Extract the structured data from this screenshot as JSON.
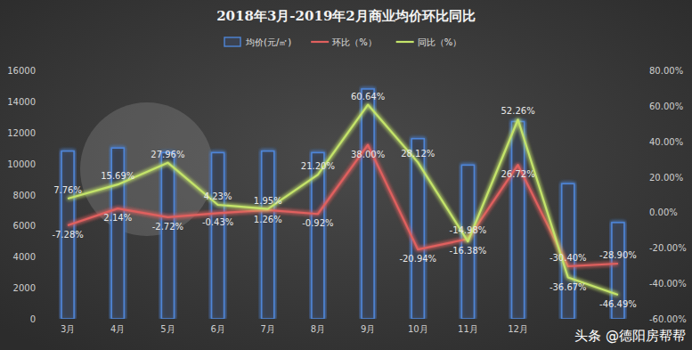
{
  "chart_data": {
    "type": "bar",
    "title": "2018年3月-2019年2月商业均价环比同比",
    "categories": [
      "3月",
      "4月",
      "5月",
      "6月",
      "7月",
      "8月",
      "9月",
      "10月",
      "11月",
      "12月",
      null,
      null
    ],
    "series": [
      {
        "name": "均价(元/㎡)",
        "type": "bar",
        "color": "#4f86d8",
        "data_labels": false,
        "values": [
          10800,
          11000,
          10700,
          10700,
          10800,
          10700,
          14800,
          11600,
          9900,
          12700,
          8700,
          6200
        ]
      },
      {
        "name": "环比（%）",
        "type": "line",
        "axis": "y2",
        "color": "#e0605e",
        "data_labels": true,
        "values": [
          -7.28,
          2.14,
          -2.72,
          -0.43,
          1.26,
          -0.92,
          38.0,
          -20.94,
          -14.98,
          26.72,
          -30.4,
          -28.9
        ],
        "value_labels": [
          "-7.28%",
          "2.14%",
          "-2.72%",
          "-0.43%",
          "1.26%",
          "-0.92%",
          "38.00%",
          "-20.94%",
          "-14.98%",
          "26.72%",
          "-30.40%",
          "-28.90%"
        ]
      },
      {
        "name": "同比（%）",
        "type": "line",
        "axis": "y2",
        "color": "#c4e46a",
        "data_labels": true,
        "values": [
          7.76,
          15.69,
          27.96,
          4.23,
          1.95,
          21.2,
          60.64,
          28.12,
          -16.38,
          52.26,
          -36.67,
          -46.49
        ],
        "value_labels": [
          "7.76%",
          "15.69%",
          "27.96%",
          "4.23%",
          "1.95%",
          "21.20%",
          "60.64%",
          "28.12%",
          "-16.38%",
          "52.26%",
          "-36.67%",
          "-46.49%"
        ]
      }
    ],
    "ylim": [
      0,
      16000
    ],
    "yticks": [
      0,
      2000,
      4000,
      6000,
      8000,
      10000,
      12000,
      14000,
      16000
    ],
    "y2lim": [
      -60,
      80
    ],
    "y2ticks": [
      {
        "value": -60,
        "label": "-60.00%"
      },
      {
        "value": -40,
        "label": "-40.00%"
      },
      {
        "value": -20,
        "label": "-20.00%"
      },
      {
        "value": 0,
        "label": "0.00%"
      },
      {
        "value": 20,
        "label": "20.00%"
      },
      {
        "value": 40,
        "label": "40.00%"
      },
      {
        "value": 60,
        "label": "60.00%"
      },
      {
        "value": 80,
        "label": "80.00%"
      }
    ],
    "grid": false,
    "legend": "top",
    "annotations": [
      "头条 @德阳房帮帮"
    ]
  }
}
